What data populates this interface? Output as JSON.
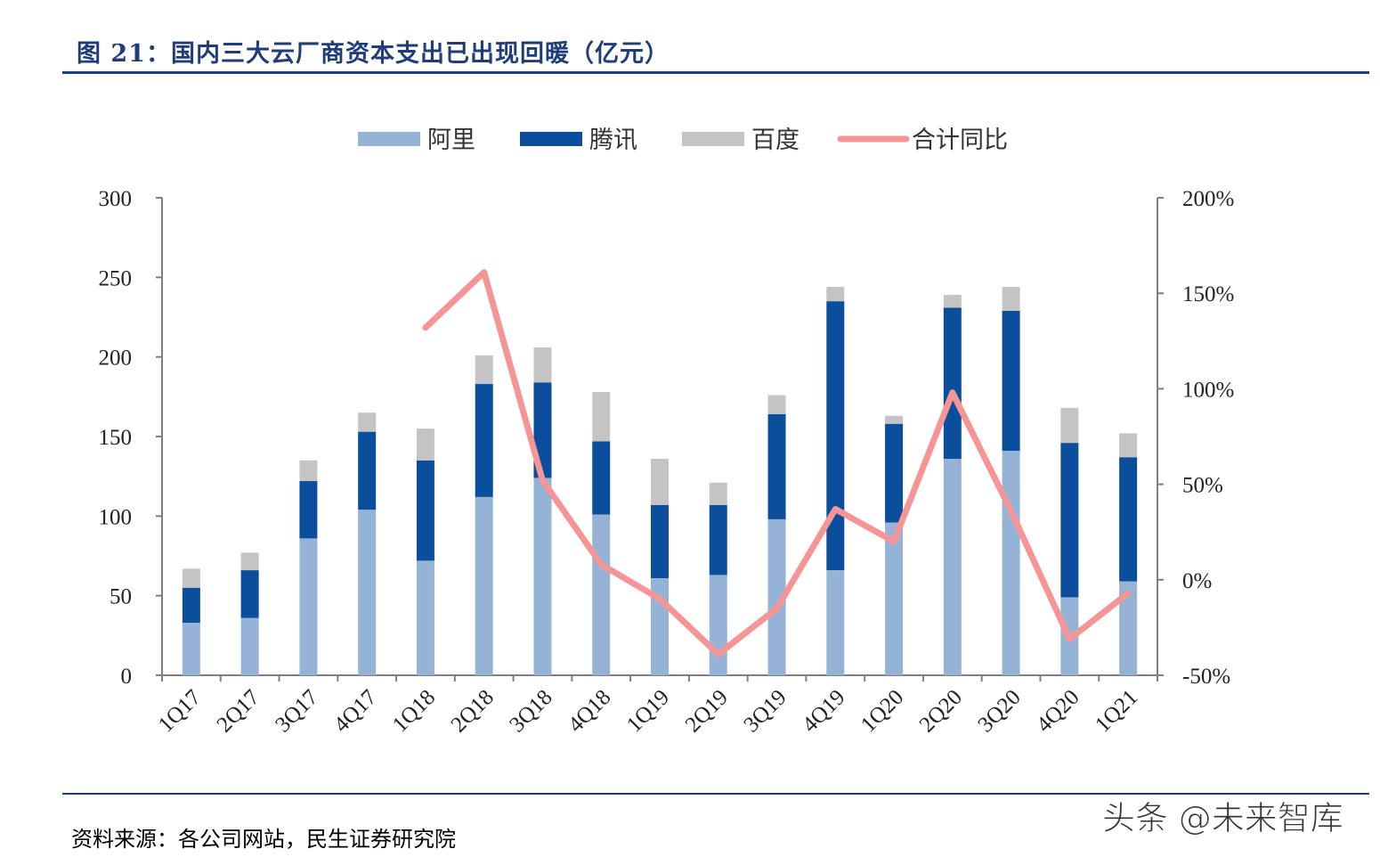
{
  "figure": {
    "title": "图 21：国内三大云厂商资本支出已出现回暖（亿元）",
    "source": "资料来源：各公司网站，民生证券研究院",
    "watermark": "头条 @未来智库"
  },
  "colors": {
    "alibaba": "#95b3d7",
    "tencent": "#0b4f9c",
    "baidu": "#c4c4c4",
    "yoy": "#f59595",
    "axis": "#7f7f7f",
    "rule": "#1f3d7a"
  },
  "chart_data": {
    "type": "bar",
    "stacked": true,
    "title": "国内三大云厂商资本支出已出现回暖（亿元）",
    "categories": [
      "1Q17",
      "2Q17",
      "3Q17",
      "4Q17",
      "1Q18",
      "2Q18",
      "3Q18",
      "4Q18",
      "1Q19",
      "2Q19",
      "3Q19",
      "4Q19",
      "1Q20",
      "2Q20",
      "3Q20",
      "4Q20",
      "1Q21"
    ],
    "series": [
      {
        "name": "阿里",
        "values": [
          33,
          36,
          86,
          104,
          72,
          112,
          124,
          101,
          61,
          63,
          98,
          66,
          96,
          136,
          141,
          49,
          59
        ]
      },
      {
        "name": "腾讯",
        "values": [
          22,
          30,
          36,
          49,
          63,
          71,
          60,
          46,
          46,
          44,
          66,
          169,
          62,
          95,
          88,
          97,
          78
        ]
      },
      {
        "name": "百度",
        "values": [
          12,
          11,
          13,
          12,
          20,
          18,
          22,
          31,
          29,
          14,
          12,
          9,
          5,
          8,
          15,
          22,
          15
        ]
      }
    ],
    "line_series": {
      "name": "合计同比",
      "values": [
        null,
        null,
        null,
        null,
        132,
        161,
        52,
        8,
        -10,
        -39,
        -15,
        37,
        20,
        98,
        36,
        -31,
        -7
      ]
    },
    "ylim": [
      0,
      300
    ],
    "yticks": [
      0,
      50,
      100,
      150,
      200,
      250,
      300
    ],
    "y2lim": [
      -50,
      200
    ],
    "y2ticks": [
      "-50%",
      "0%",
      "50%",
      "100%",
      "150%",
      "200%"
    ],
    "y2tick_values": [
      -50,
      0,
      50,
      100,
      150,
      200
    ],
    "legend_position": "top-center",
    "xlabel": "",
    "ylabel": ""
  }
}
